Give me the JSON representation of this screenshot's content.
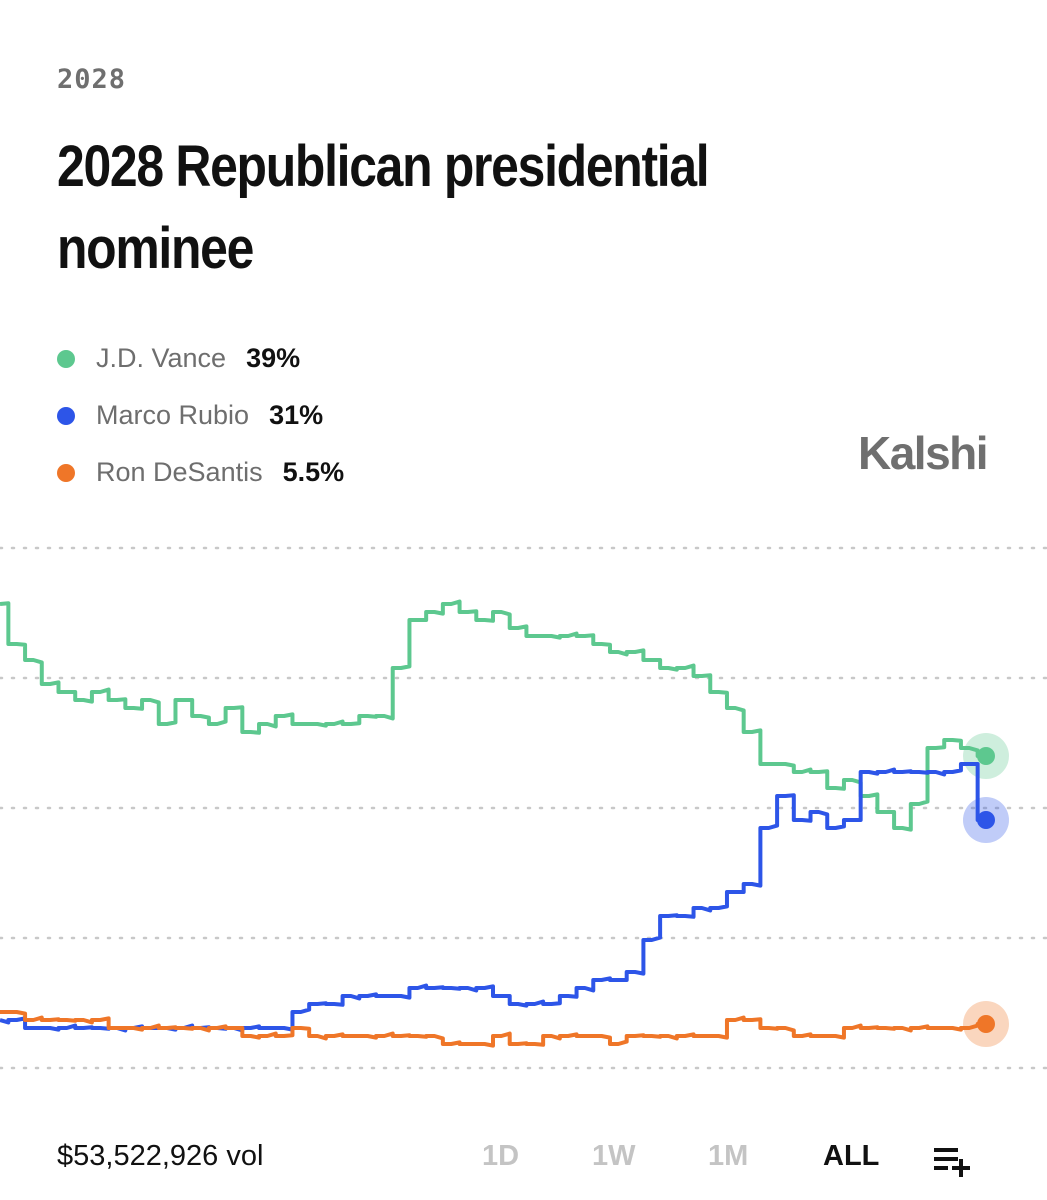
{
  "header": {
    "category": "2028",
    "title": "2028 Republican presidential nominee"
  },
  "brand": "Kalshi",
  "legend": [
    {
      "name": "J.D. Vance",
      "value": "39%",
      "color": "#5dc88f"
    },
    {
      "name": "Marco Rubio",
      "value": "31%",
      "color": "#2d55e8"
    },
    {
      "name": "Ron DeSantis",
      "value": "5.5%",
      "color": "#ef7628"
    }
  ],
  "chart_data": {
    "type": "line",
    "grid": true,
    "series": [
      {
        "name": "J.D. Vance",
        "color": "#5dc88f",
        "values": [
          58,
          53,
          51,
          48,
          47,
          46,
          47,
          46,
          45,
          46,
          43,
          46,
          44,
          43,
          45,
          42,
          43,
          44,
          43,
          43,
          43,
          43,
          44,
          44,
          50,
          56,
          57,
          58,
          57,
          56,
          57,
          55,
          54,
          54,
          54,
          54,
          53,
          52,
          52,
          51,
          50,
          50,
          49,
          47,
          45,
          42,
          38,
          38,
          37,
          37,
          35,
          36,
          34,
          32,
          30,
          33,
          40,
          41,
          40,
          39
        ]
      },
      {
        "name": "Marco Rubio",
        "color": "#2d55e8",
        "values": [
          6,
          6,
          5,
          5,
          5,
          5,
          5,
          5,
          5,
          5,
          5,
          5,
          5,
          5,
          5,
          5,
          5,
          5,
          7,
          8,
          8,
          9,
          9,
          9,
          9,
          10,
          10,
          10,
          10,
          10,
          9,
          8,
          8,
          8,
          9,
          10,
          11,
          11,
          12,
          16,
          19,
          19,
          20,
          20,
          22,
          23,
          30,
          34,
          31,
          32,
          30,
          31,
          37,
          37,
          37,
          37,
          37,
          37,
          38,
          31
        ]
      },
      {
        "name": "Ron DeSantis",
        "color": "#ef7628",
        "values": [
          7,
          7,
          6,
          6,
          6,
          6,
          6,
          5,
          5,
          5,
          5,
          5,
          5,
          5,
          5,
          4,
          4,
          4,
          5,
          4,
          4,
          4,
          4,
          4,
          4,
          4,
          4,
          3,
          3,
          3,
          4,
          3,
          3,
          4,
          4,
          4,
          4,
          3,
          4,
          4,
          4,
          4,
          4,
          4,
          6,
          6,
          5,
          5,
          4,
          4,
          4,
          5,
          5,
          5,
          5,
          5,
          5,
          5,
          5,
          5.5
        ]
      }
    ],
    "ylim": [
      0,
      65
    ]
  },
  "footer": {
    "volume": "$53,522,926 vol",
    "ranges": [
      "1D",
      "1W",
      "1M",
      "ALL"
    ],
    "active_range": "ALL"
  }
}
